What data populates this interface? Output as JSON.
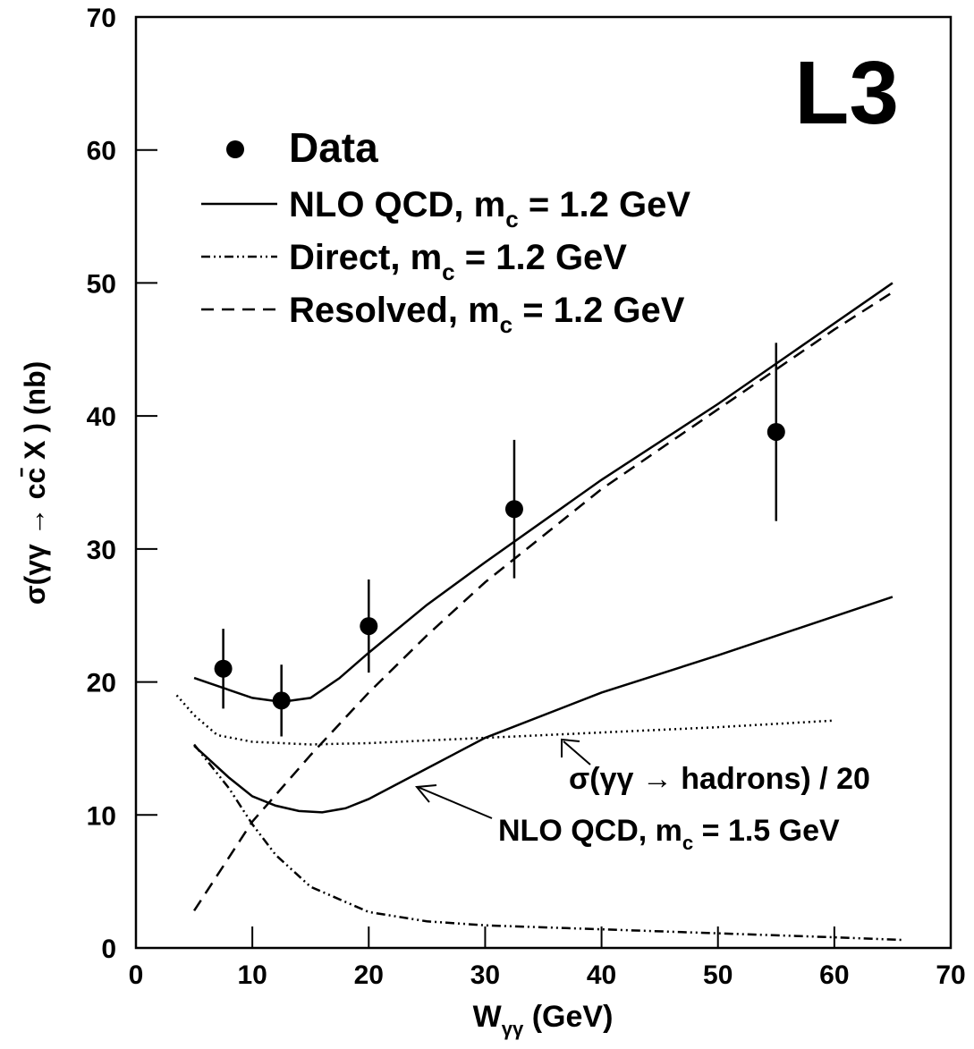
{
  "chart_data": {
    "type": "line",
    "xlabel": "Wγγ  (GeV)",
    "ylabel": "σ(γγ → cc̄ X )  (nb)",
    "annotation": "L3",
    "xlim": [
      0,
      70
    ],
    "ylim": [
      0,
      70
    ],
    "xticks": [
      0,
      10,
      20,
      30,
      40,
      50,
      60,
      70
    ],
    "yticks": [
      0,
      10,
      20,
      30,
      40,
      50,
      60,
      70
    ],
    "points": {
      "name": "Data",
      "color": "#000",
      "x": [
        7.5,
        12.5,
        20,
        32.5,
        55
      ],
      "values": [
        21,
        18.6,
        24.2,
        33,
        38.8
      ],
      "errors": [
        3,
        2.7,
        3.5,
        5.2,
        6.7
      ]
    },
    "series": [
      {
        "name": "NLO QCD, mc = 1.2 GeV",
        "color": "#000",
        "style": "solid",
        "x": [
          5,
          10,
          12.5,
          15,
          17.5,
          20,
          25,
          30,
          40,
          50,
          65
        ],
        "values": [
          20.3,
          18.8,
          18.5,
          18.8,
          20.3,
          22.2,
          25.8,
          29,
          35.2,
          40.9,
          50
        ]
      },
      {
        "name": "Direct, mc = 1.2 GeV",
        "color": "#000",
        "style": "dashdotdot",
        "x": [
          5,
          8,
          10,
          12,
          15,
          20,
          25,
          30,
          40,
          50,
          60,
          66
        ],
        "values": [
          15.3,
          12,
          9.3,
          7,
          4.6,
          2.7,
          2,
          1.7,
          1.4,
          1.1,
          0.8,
          0.6
        ]
      },
      {
        "name": "Resolved, mc = 1.2 GeV",
        "color": "#000",
        "style": "dashed",
        "x": [
          5,
          10,
          15,
          20,
          25,
          30,
          40,
          50,
          60,
          65
        ],
        "values": [
          2.8,
          9.5,
          14.5,
          19.2,
          23.5,
          27.5,
          34.5,
          40.5,
          46.5,
          49.3
        ]
      }
    ],
    "curves": [
      {
        "label": "σ(γγ → hadrons) / 20",
        "color": "#000",
        "style": "dotted",
        "x": [
          3.5,
          5,
          7,
          10,
          15,
          20,
          30,
          40,
          50,
          60
        ],
        "values": [
          19,
          17.5,
          16,
          15.5,
          15.3,
          15.4,
          15.8,
          16.2,
          16.6,
          17.1
        ]
      },
      {
        "label": "NLO QCD, mc = 1.5 GeV",
        "color": "#000",
        "style": "solid",
        "x": [
          5,
          8,
          10,
          12,
          14,
          16,
          18,
          20,
          25,
          30,
          40,
          50,
          65
        ],
        "values": [
          15.2,
          12.8,
          11.4,
          10.7,
          10.3,
          10.2,
          10.5,
          11.2,
          13.5,
          15.8,
          19.2,
          22,
          26.4
        ]
      }
    ]
  }
}
